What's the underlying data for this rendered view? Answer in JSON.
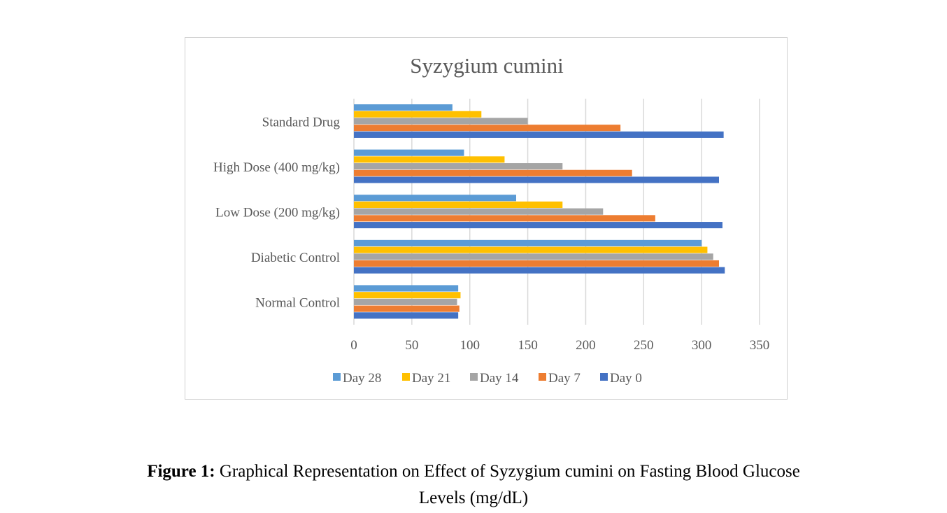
{
  "chart_data": {
    "type": "bar",
    "orientation": "horizontal",
    "title": "Syzygium cumini",
    "xlabel": "",
    "ylabel": "",
    "xlim": [
      0,
      350
    ],
    "xticks": [
      0,
      50,
      100,
      150,
      200,
      250,
      300,
      350
    ],
    "grid": true,
    "legend_position": "bottom",
    "categories": [
      "Normal Control",
      "Diabetic Control",
      "Low Dose (200 mg/kg)",
      "High Dose (400 mg/kg)",
      "Standard Drug"
    ],
    "series": [
      {
        "name": "Day 0",
        "color": "#4472C4",
        "values": [
          90,
          320,
          318,
          315,
          319
        ]
      },
      {
        "name": "Day 7",
        "color": "#ED7D31",
        "values": [
          91,
          315,
          260,
          240,
          230
        ]
      },
      {
        "name": "Day 14",
        "color": "#A5A5A5",
        "values": [
          89,
          310,
          215,
          180,
          150
        ]
      },
      {
        "name": "Day 21",
        "color": "#FFC000",
        "values": [
          92,
          305,
          180,
          130,
          110
        ]
      },
      {
        "name": "Day 28",
        "color": "#5B9BD5",
        "values": [
          90,
          300,
          140,
          95,
          85
        ]
      }
    ],
    "legend_order": [
      "Day 28",
      "Day 21",
      "Day 14",
      "Day 7",
      "Day 0"
    ]
  },
  "caption": {
    "label": "Figure 1:",
    "text": " Graphical Representation on Effect of Syzygium cumini on Fasting Blood Glucose",
    "text_line2": "Levels (mg/dL)"
  }
}
